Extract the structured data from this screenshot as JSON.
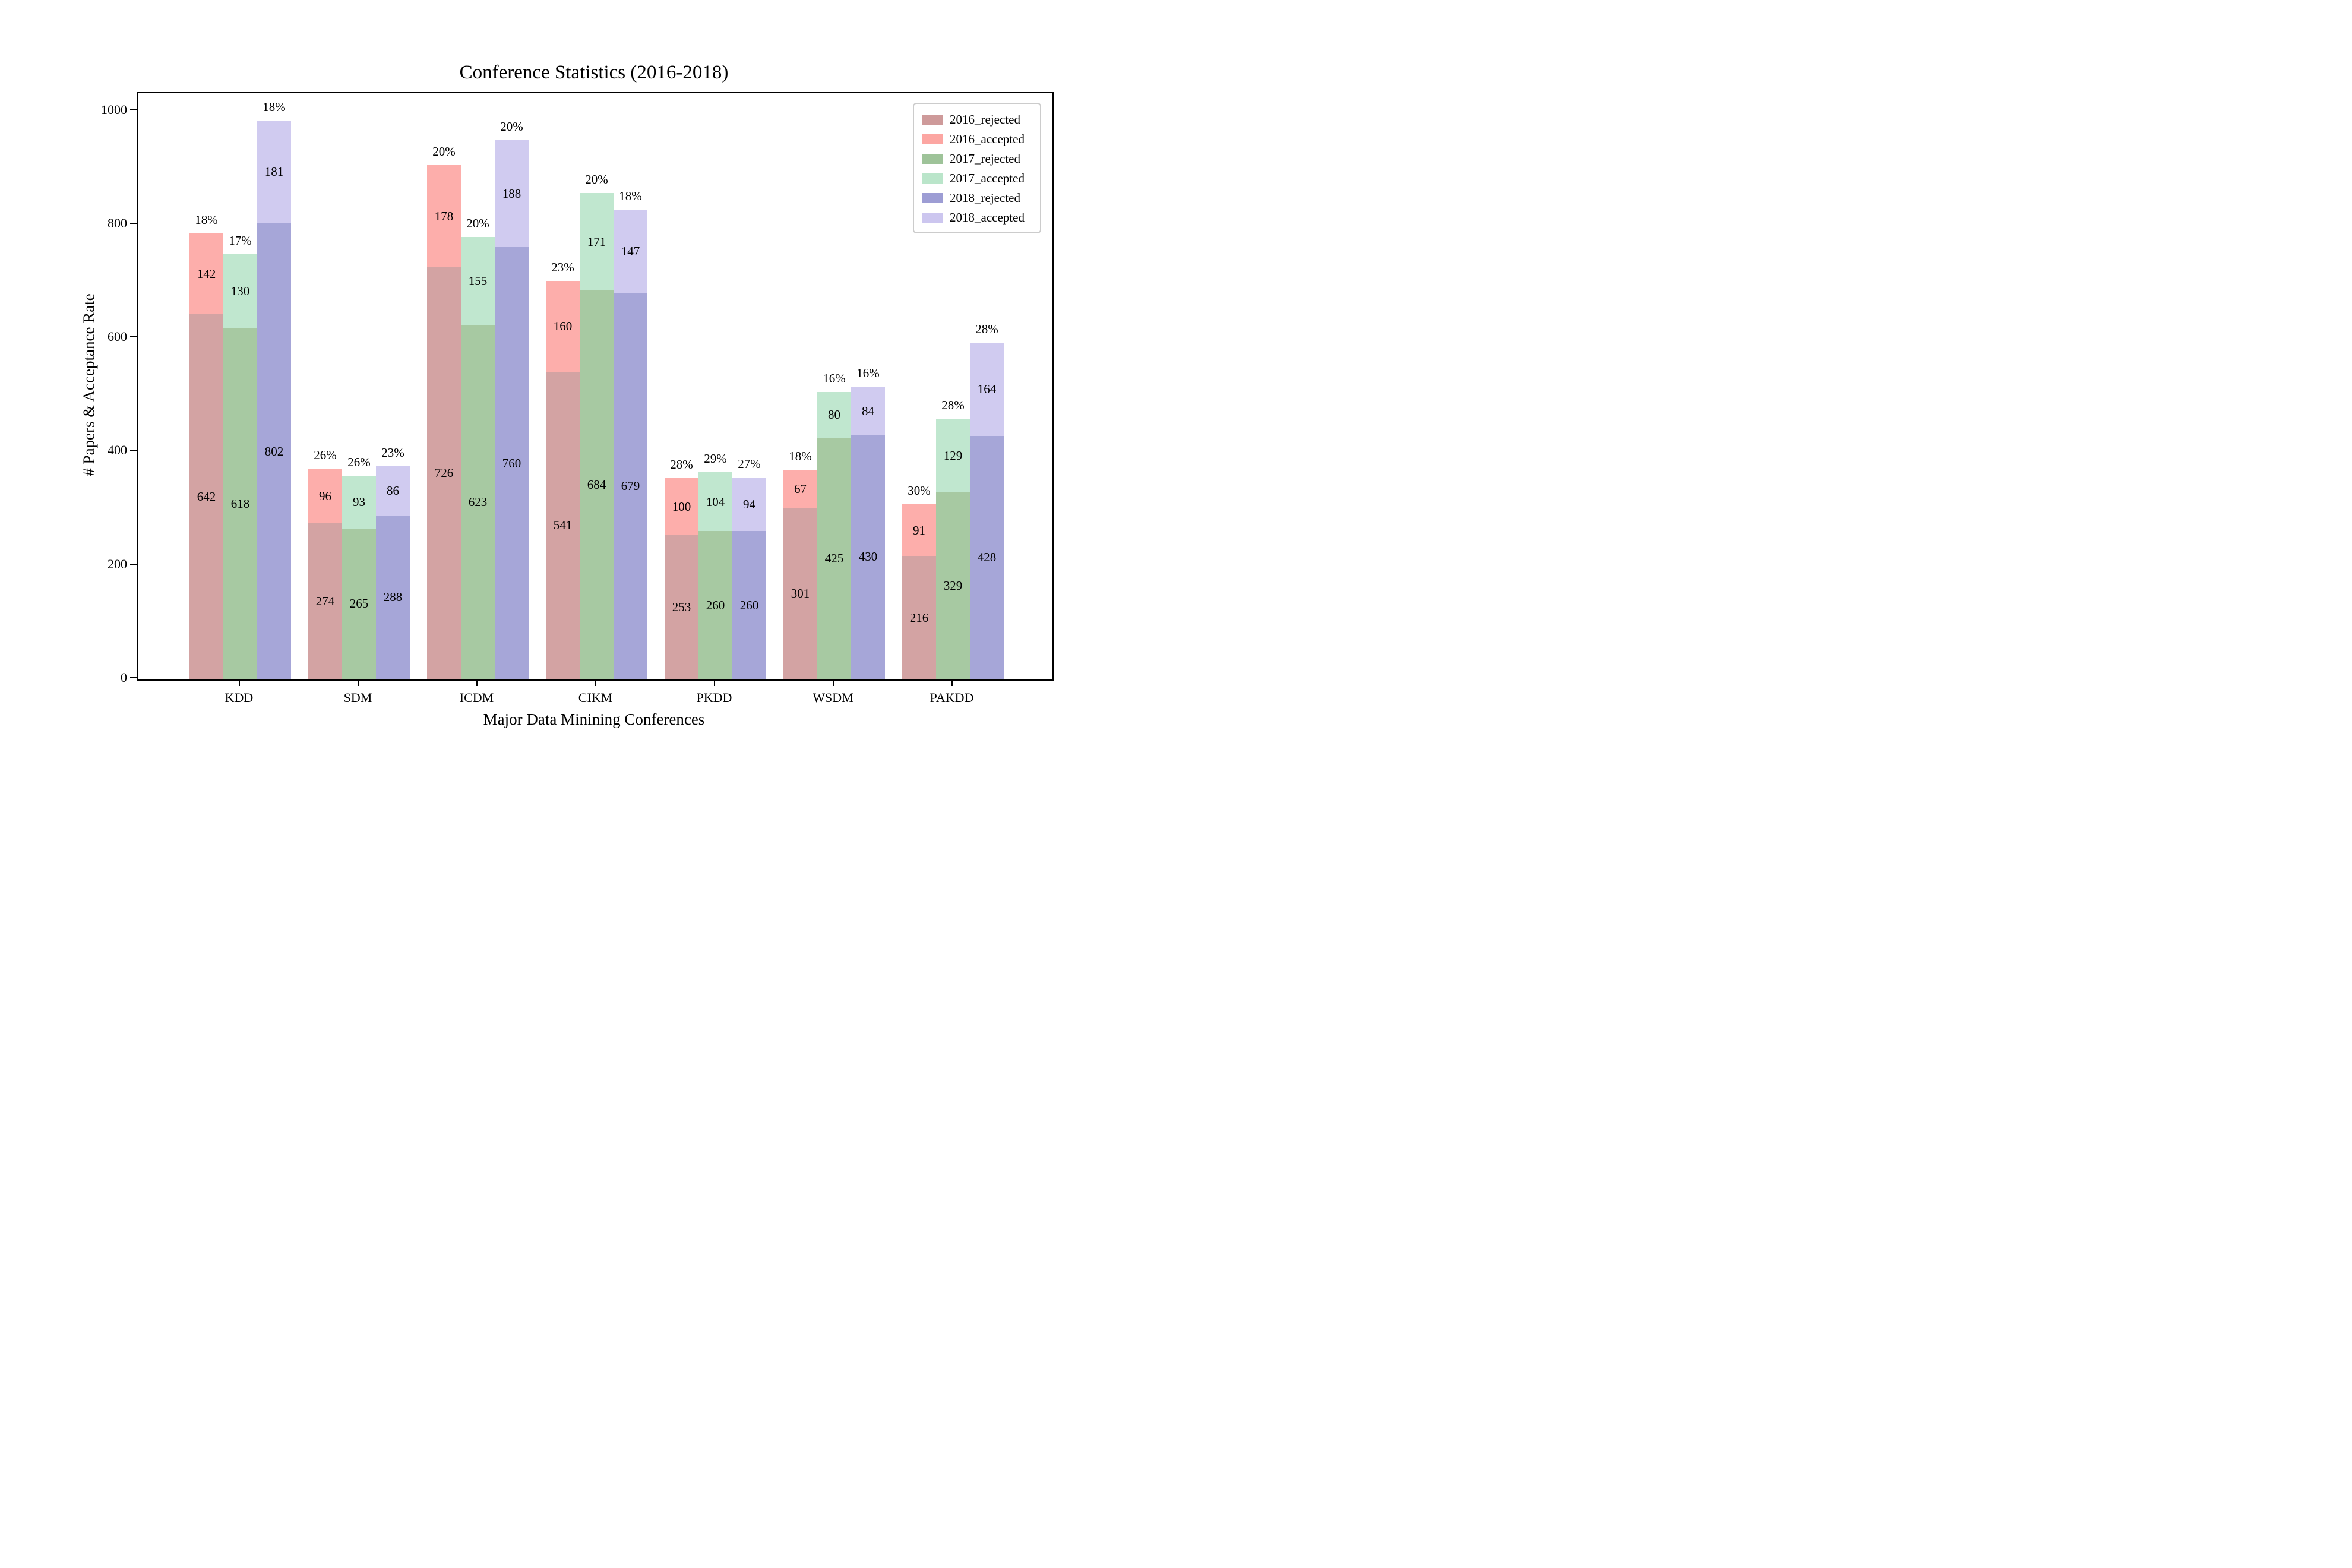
{
  "figure_title": "Conference Statistics (2016-2018)",
  "chart_data": {
    "type": "bar",
    "stacked": true,
    "title": "Conference Statistics (2016-2018)",
    "xlabel": "Major Data Minining Conferences",
    "ylabel": "# Papers & Acceptance Rate",
    "ylim": [
      0,
      1031
    ],
    "yticks": [
      0,
      200,
      400,
      600,
      800,
      1000
    ],
    "grid": false,
    "legend_position": "upper right",
    "categories": [
      "KDD",
      "SDM",
      "ICDM",
      "CIKM",
      "PKDD",
      "WSDM",
      "PAKDD"
    ],
    "years": [
      {
        "year": "2016",
        "rejected_color": "#c98f8f",
        "accepted_color": "#fc9c98"
      },
      {
        "year": "2017",
        "rejected_color": "#94bd8e",
        "accepted_color": "#b2e2c4"
      },
      {
        "year": "2018",
        "rejected_color": "#9292cf",
        "accepted_color": "#c6c0ed"
      }
    ],
    "legend_entries": [
      {
        "label": "2016_rejected",
        "color": "#c98f8f"
      },
      {
        "label": "2016_accepted",
        "color": "#fc9c98"
      },
      {
        "label": "2017_rejected",
        "color": "#94bd8e"
      },
      {
        "label": "2017_accepted",
        "color": "#b2e2c4"
      },
      {
        "label": "2018_rejected",
        "color": "#9292cf"
      },
      {
        "label": "2018_accepted",
        "color": "#c6c0ed"
      }
    ],
    "groups": [
      {
        "conference": "KDD",
        "bars": [
          {
            "year": "2016",
            "rejected": 642,
            "accepted": 142,
            "acceptance_rate": "18%"
          },
          {
            "year": "2017",
            "rejected": 618,
            "accepted": 130,
            "acceptance_rate": "17%"
          },
          {
            "year": "2018",
            "rejected": 802,
            "accepted": 181,
            "acceptance_rate": "18%"
          }
        ]
      },
      {
        "conference": "SDM",
        "bars": [
          {
            "year": "2016",
            "rejected": 274,
            "accepted": 96,
            "acceptance_rate": "26%"
          },
          {
            "year": "2017",
            "rejected": 265,
            "accepted": 93,
            "acceptance_rate": "26%"
          },
          {
            "year": "2018",
            "rejected": 288,
            "accepted": 86,
            "acceptance_rate": "23%"
          }
        ]
      },
      {
        "conference": "ICDM",
        "bars": [
          {
            "year": "2016",
            "rejected": 726,
            "accepted": 178,
            "acceptance_rate": "20%"
          },
          {
            "year": "2017",
            "rejected": 623,
            "accepted": 155,
            "acceptance_rate": "20%"
          },
          {
            "year": "2018",
            "rejected": 760,
            "accepted": 188,
            "acceptance_rate": "20%"
          }
        ]
      },
      {
        "conference": "CIKM",
        "bars": [
          {
            "year": "2016",
            "rejected": 541,
            "accepted": 160,
            "acceptance_rate": "23%"
          },
          {
            "year": "2017",
            "rejected": 684,
            "accepted": 171,
            "acceptance_rate": "20%"
          },
          {
            "year": "2018",
            "rejected": 679,
            "accepted": 147,
            "acceptance_rate": "18%"
          }
        ]
      },
      {
        "conference": "PKDD",
        "bars": [
          {
            "year": "2016",
            "rejected": 253,
            "accepted": 100,
            "acceptance_rate": "28%"
          },
          {
            "year": "2017",
            "rejected": 260,
            "accepted": 104,
            "acceptance_rate": "29%"
          },
          {
            "year": "2018",
            "rejected": 260,
            "accepted": 94,
            "acceptance_rate": "27%"
          }
        ]
      },
      {
        "conference": "WSDM",
        "bars": [
          {
            "year": "2016",
            "rejected": 301,
            "accepted": 67,
            "acceptance_rate": "18%"
          },
          {
            "year": "2017",
            "rejected": 425,
            "accepted": 80,
            "acceptance_rate": "16%"
          },
          {
            "year": "2018",
            "rejected": 430,
            "accepted": 84,
            "acceptance_rate": "16%"
          }
        ]
      },
      {
        "conference": "PAKDD",
        "bars": [
          {
            "year": "2016",
            "rejected": 216,
            "accepted": 91,
            "acceptance_rate": "30%"
          },
          {
            "year": "2017",
            "rejected": 329,
            "accepted": 129,
            "acceptance_rate": "28%"
          },
          {
            "year": "2018",
            "rejected": 428,
            "accepted": 164,
            "acceptance_rate": "28%"
          }
        ]
      }
    ]
  }
}
